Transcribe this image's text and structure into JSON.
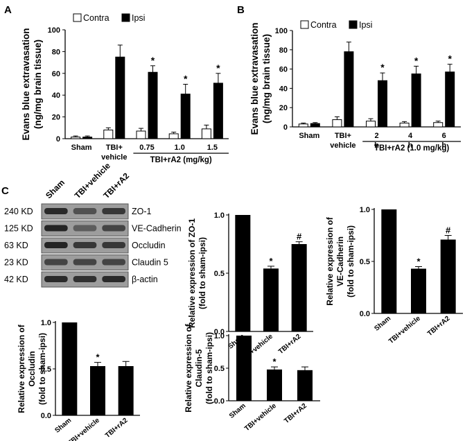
{
  "panels": {
    "a": "A",
    "b": "B",
    "c": "C"
  },
  "colors": {
    "contra": "#ffffff",
    "ipsi": "#000000",
    "axis": "#000000"
  },
  "western_blot": {
    "lane_labels": [
      "Sham",
      "TBI+vehicle",
      "TBI+rA2"
    ],
    "rows": [
      {
        "kd": "240 KD",
        "protein": "ZO-1"
      },
      {
        "kd": "125 KD",
        "protein": "VE-Cadherin"
      },
      {
        "kd": "63 KD",
        "protein": "Occludin"
      },
      {
        "kd": "23 KD",
        "protein": "Claudin 5"
      },
      {
        "kd": "42 KD",
        "protein": "β-actin"
      }
    ]
  },
  "chart_data": [
    {
      "id": "A",
      "type": "bar",
      "title": "",
      "ylabel": "Evans blue extravasation (ng/mg brain tissue)",
      "ylim": [
        0,
        100
      ],
      "yticks": [
        0,
        20,
        40,
        60,
        80,
        100
      ],
      "categories": [
        "Sham",
        "TBI+ vehicle",
        "0.75",
        "1.0",
        "1.5"
      ],
      "group_label": "TBI+rA2 (mg/kg)",
      "legend": [
        "Contra",
        "Ipsi"
      ],
      "legend_position": "top-left",
      "series": [
        {
          "name": "Contra",
          "values": [
            1.5,
            8,
            7,
            4.5,
            9
          ],
          "errors": [
            1,
            2,
            2.5,
            1.5,
            3.5
          ]
        },
        {
          "name": "Ipsi",
          "values": [
            1.5,
            75,
            61,
            41,
            51
          ],
          "errors": [
            1,
            11,
            6,
            9,
            9
          ]
        }
      ],
      "significance": [
        null,
        "",
        "*",
        "*",
        "*"
      ]
    },
    {
      "id": "B",
      "type": "bar",
      "title": "",
      "ylabel": "Evans blue extravasation (ng/mg brain tissue)",
      "ylim": [
        0,
        100
      ],
      "yticks": [
        0,
        20,
        40,
        60,
        80,
        100
      ],
      "categories": [
        "Sham",
        "TBI+ vehicle",
        "2 h",
        "4 h",
        "6 h"
      ],
      "group_label": "TBI+rA2 (1.0 mg/kg)",
      "legend": [
        "Contra",
        "Ipsi"
      ],
      "legend_position": "top-left",
      "series": [
        {
          "name": "Contra",
          "values": [
            3,
            7.5,
            6,
            4,
            4.5
          ],
          "errors": [
            1,
            3,
            2.5,
            1.5,
            1.5
          ]
        },
        {
          "name": "Ipsi",
          "values": [
            3.5,
            78,
            48,
            55,
            57
          ],
          "errors": [
            1,
            10,
            8,
            8,
            8
          ]
        }
      ],
      "significance": [
        null,
        "",
        "*",
        "*",
        "*"
      ]
    },
    {
      "id": "ZO-1",
      "type": "bar",
      "ylabel": "Relative expression of ZO-1 (fold to sham-ipsi)",
      "ylim": [
        0,
        1.0
      ],
      "yticks": [
        0.0,
        0.5,
        1.0
      ],
      "categories": [
        "Sham",
        "TBI+vehicle",
        "TBI+rA2"
      ],
      "values": [
        1.0,
        0.54,
        0.75
      ],
      "errors": [
        0,
        0.02,
        0.02
      ],
      "significance": [
        "",
        "*",
        "#"
      ]
    },
    {
      "id": "VE-Cadherin",
      "type": "bar",
      "ylabel": "Relative expression of VE-Cadherin (fold to sham-ipsi)",
      "ylim": [
        0,
        1.0
      ],
      "yticks": [
        0.0,
        0.5,
        1.0
      ],
      "categories": [
        "Sham",
        "TBI+vehicle",
        "TBI+rA2"
      ],
      "values": [
        1.0,
        0.43,
        0.71
      ],
      "errors": [
        0,
        0.02,
        0.04
      ],
      "significance": [
        "",
        "*",
        "#"
      ]
    },
    {
      "id": "Occludin",
      "type": "bar",
      "ylabel": "Relative expression of Occludin (fold to sham-ipsi)",
      "ylim": [
        0,
        1.0
      ],
      "yticks": [
        0.0,
        0.5,
        1.0
      ],
      "categories": [
        "Sham",
        "TBI+vehicle",
        "TBI+rA2"
      ],
      "values": [
        1.0,
        0.53,
        0.53
      ],
      "errors": [
        0,
        0.04,
        0.05
      ],
      "significance": [
        "",
        "*",
        ""
      ]
    },
    {
      "id": "Claudin-5",
      "type": "bar",
      "ylabel": "Relative expression of Claudin-5 (fold to sham-ipsi)",
      "ylim": [
        0,
        1.0
      ],
      "yticks": [
        0.0,
        0.5,
        1.0
      ],
      "categories": [
        "Sham",
        "TBI+vehicle",
        "TBI+rA2"
      ],
      "values": [
        1.0,
        0.48,
        0.47
      ],
      "errors": [
        0,
        0.04,
        0.05
      ],
      "significance": [
        "",
        "*",
        ""
      ]
    }
  ]
}
